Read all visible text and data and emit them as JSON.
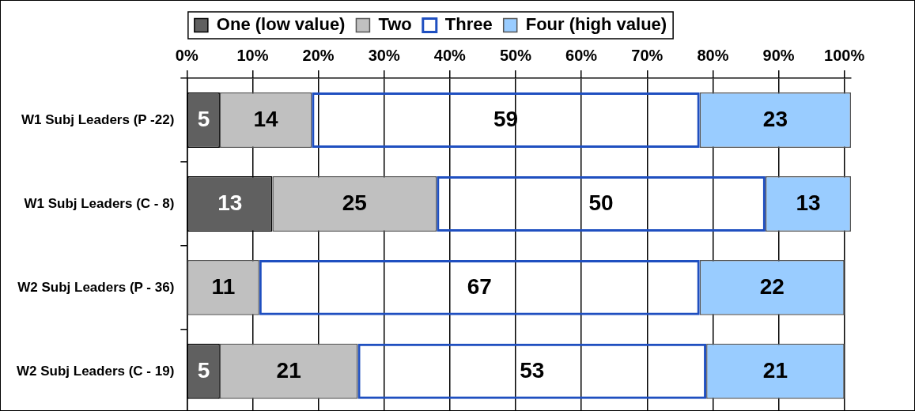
{
  "chart_data": {
    "type": "bar",
    "orientation": "horizontal",
    "stacked": true,
    "categories": [
      "W1 Subj Leaders (P -22)",
      "W1 Subj Leaders (C - 8)",
      "W2 Subj Leaders (P - 36)",
      "W2 Subj Leaders (C - 19)"
    ],
    "series": [
      {
        "name": "One (low value)",
        "color": "#606060",
        "values": [
          5,
          13,
          0,
          5
        ],
        "value_labels": [
          "5",
          "13",
          null,
          "5"
        ]
      },
      {
        "name": "Two",
        "color": "#c0c0c0",
        "values": [
          14,
          25,
          11,
          21
        ],
        "value_labels": [
          "14",
          "25",
          "11",
          "21"
        ]
      },
      {
        "name": "Three",
        "color": "#1f4fc0",
        "values": [
          59,
          50,
          67,
          53
        ],
        "value_labels": [
          "59",
          "50",
          "67",
          "53"
        ]
      },
      {
        "name": "Four (high value)",
        "color": "#99ccff",
        "values": [
          23,
          13,
          22,
          21
        ],
        "value_labels": [
          "23",
          "13",
          "22",
          "21"
        ]
      }
    ],
    "xlim": [
      0,
      101
    ],
    "xticks": [
      {
        "value": 0,
        "label": "0%"
      },
      {
        "value": 10,
        "label": "10%"
      },
      {
        "value": 20,
        "label": "20%"
      },
      {
        "value": 30,
        "label": "30%"
      },
      {
        "value": 40,
        "label": "40%"
      },
      {
        "value": 50,
        "label": "50%"
      },
      {
        "value": 60,
        "label": "60%"
      },
      {
        "value": 70,
        "label": "70%"
      },
      {
        "value": 80,
        "label": "80%"
      },
      {
        "value": 90,
        "label": "90%"
      },
      {
        "value": 100,
        "label": "100%"
      }
    ],
    "grid": "x",
    "legend": "top"
  }
}
